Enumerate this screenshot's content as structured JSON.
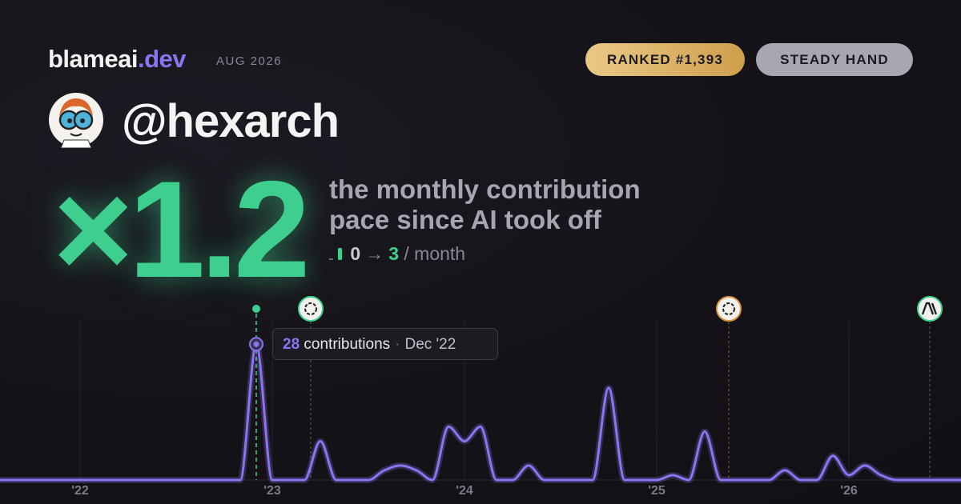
{
  "header": {
    "brand": "blameai",
    "domain": ".dev",
    "period": "AUG 2026",
    "rank": "RANKED #1,393",
    "trait": "STEADY HAND",
    "handle": "@hexarch"
  },
  "summary": {
    "multiplier": "×1.2",
    "caption": [
      "the monthly contribution",
      "pace since AI took off"
    ],
    "pace_before": 0,
    "pace_after": 3,
    "pace_unit": "/ month"
  },
  "chart_data": {
    "type": "line",
    "color": "#8b74f0",
    "categories": [
      null,
      null,
      null,
      null,
      null,
      "'22",
      null,
      null,
      null,
      null,
      null,
      null,
      null,
      null,
      null,
      null,
      null,
      "'23",
      null,
      null,
      null,
      null,
      null,
      null,
      null,
      null,
      null,
      null,
      null,
      "'24",
      null,
      null,
      null,
      null,
      null,
      null,
      null,
      null,
      null,
      null,
      null,
      "'25",
      null,
      null,
      null,
      null,
      null,
      null,
      null,
      null,
      null,
      null,
      null,
      "'26",
      null,
      null,
      null,
      null,
      null,
      null,
      null
    ],
    "values": [
      0,
      0,
      0,
      0,
      0,
      0,
      0,
      0,
      0,
      0,
      0,
      0,
      0,
      0,
      0,
      0,
      28,
      0,
      0,
      0,
      8,
      0,
      0,
      0,
      2,
      3,
      2,
      0,
      11,
      8,
      11,
      0,
      0,
      3,
      0,
      0,
      0,
      0,
      19,
      0,
      0,
      0,
      1,
      0,
      10,
      0,
      0,
      0,
      0,
      2,
      0,
      0,
      5,
      1,
      3,
      1,
      0,
      0,
      0,
      0,
      0
    ],
    "ylim": [
      0,
      33
    ],
    "tooltip": {
      "unit": "contributions",
      "date": "Dec '22"
    }
  }
}
